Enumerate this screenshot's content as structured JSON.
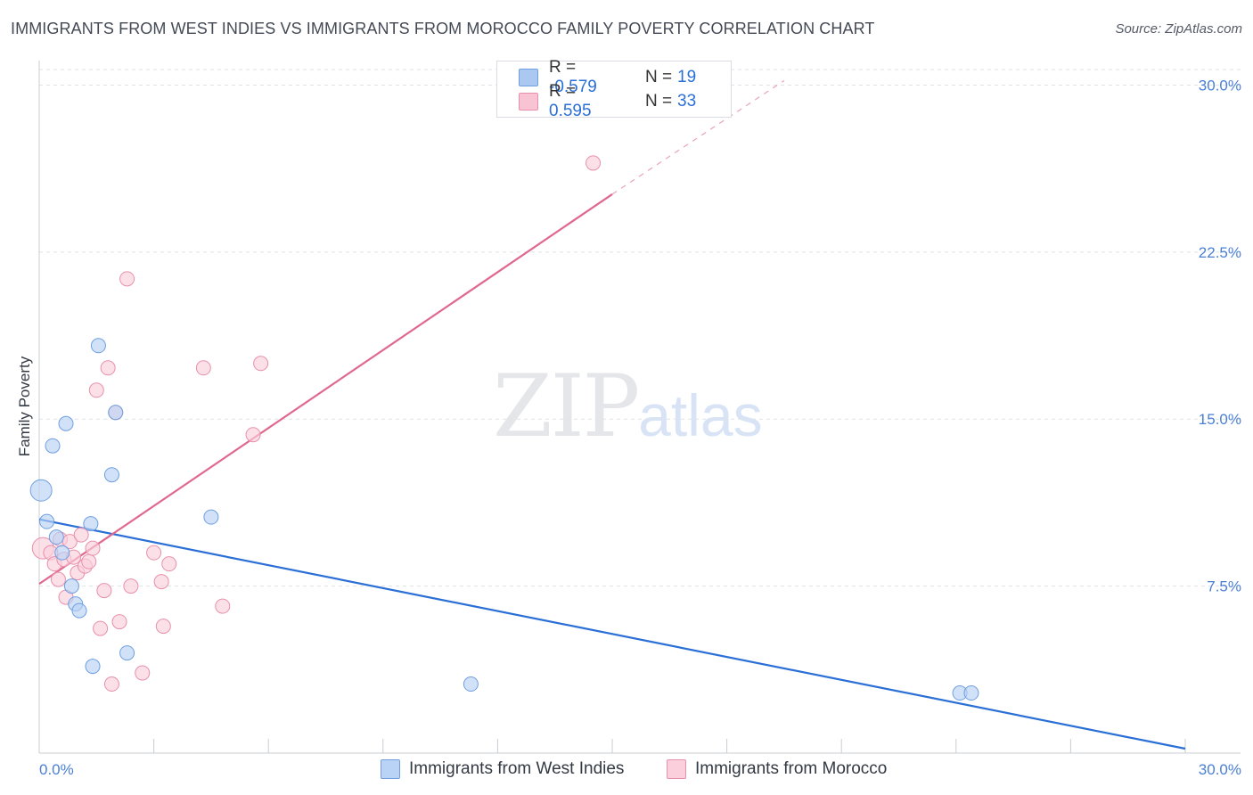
{
  "title": "IMMIGRANTS FROM WEST INDIES VS IMMIGRANTS FROM MOROCCO FAMILY POVERTY CORRELATION CHART",
  "source": "Source: ZipAtlas.com",
  "watermark": {
    "zip": "ZIP",
    "atlas": "atlas"
  },
  "legend_top": {
    "rows": [
      {
        "r_label": "R =",
        "r_value": "-0.579",
        "n_label": "N =",
        "n_value": "19",
        "color": "#aac8f0",
        "border": "#6f9fe0"
      },
      {
        "r_label": "R =",
        "r_value": "0.595",
        "n_label": "N =",
        "n_value": "33",
        "color": "#f8c4d4",
        "border": "#e890ab"
      }
    ]
  },
  "legend_bottom": [
    {
      "label": "Immigrants from West Indies",
      "color": "#b8d3f5",
      "border": "#6f9fe0"
    },
    {
      "label": "Immigrants from Morocco",
      "color": "#fbd0dc",
      "border": "#e890ab"
    }
  ],
  "chart_data": {
    "type": "scatter",
    "title": "IMMIGRANTS FROM WEST INDIES VS IMMIGRANTS FROM MOROCCO FAMILY POVERTY CORRELATION CHART",
    "xlabel": "",
    "ylabel": "Family Poverty",
    "xlim": [
      0,
      30
    ],
    "ylim": [
      0,
      30.7
    ],
    "x_tick_labels": [
      {
        "value": 0,
        "label": "0.0%"
      },
      {
        "value": 30,
        "label": "30.0%"
      }
    ],
    "y_ticks": [
      {
        "value": 7.5,
        "label": "7.5%"
      },
      {
        "value": 15,
        "label": "15.0%"
      },
      {
        "value": 22.5,
        "label": "22.5%"
      },
      {
        "value": 30,
        "label": "30.0%"
      }
    ],
    "series": [
      {
        "name": "Immigrants from West Indies",
        "color": "#6f9fe0",
        "fill": "#b8d3f5",
        "line_color": "#2a6fd6",
        "trend": {
          "x": [
            0,
            30
          ],
          "y": [
            10.5,
            0.2
          ]
        },
        "points": [
          {
            "x": 0.05,
            "y": 11.8,
            "big": true
          },
          {
            "x": 0.2,
            "y": 10.4
          },
          {
            "x": 0.35,
            "y": 13.8
          },
          {
            "x": 0.45,
            "y": 9.7
          },
          {
            "x": 0.6,
            "y": 9.0
          },
          {
            "x": 0.7,
            "y": 14.8
          },
          {
            "x": 0.85,
            "y": 7.5
          },
          {
            "x": 0.95,
            "y": 6.7
          },
          {
            "x": 1.05,
            "y": 6.4
          },
          {
            "x": 1.35,
            "y": 10.3
          },
          {
            "x": 1.4,
            "y": 3.9
          },
          {
            "x": 1.55,
            "y": 18.3
          },
          {
            "x": 1.9,
            "y": 12.5
          },
          {
            "x": 2.0,
            "y": 15.3
          },
          {
            "x": 2.3,
            "y": 4.5
          },
          {
            "x": 4.5,
            "y": 10.6
          },
          {
            "x": 11.3,
            "y": 3.1
          },
          {
            "x": 24.1,
            "y": 2.7
          },
          {
            "x": 24.4,
            "y": 2.7
          }
        ]
      },
      {
        "name": "Immigrants from Morocco",
        "color": "#e890ab",
        "fill": "#fbd0dc",
        "line_color": "#e0688f",
        "trend": {
          "x": [
            0,
            15
          ],
          "y": [
            7.6,
            25.1
          ]
        },
        "trend_dashed": {
          "x": [
            15,
            19.5
          ],
          "y": [
            25.1,
            30.2
          ]
        },
        "points": [
          {
            "x": 0.1,
            "y": 9.2,
            "big": true
          },
          {
            "x": 0.3,
            "y": 9.0
          },
          {
            "x": 0.4,
            "y": 8.5
          },
          {
            "x": 0.5,
            "y": 7.8
          },
          {
            "x": 0.55,
            "y": 9.6
          },
          {
            "x": 0.65,
            "y": 8.7
          },
          {
            "x": 0.7,
            "y": 7.0
          },
          {
            "x": 0.8,
            "y": 9.5
          },
          {
            "x": 0.9,
            "y": 8.8
          },
          {
            "x": 1.0,
            "y": 8.1
          },
          {
            "x": 1.1,
            "y": 9.8
          },
          {
            "x": 1.2,
            "y": 8.4
          },
          {
            "x": 1.3,
            "y": 8.6
          },
          {
            "x": 1.4,
            "y": 9.2
          },
          {
            "x": 1.5,
            "y": 16.3
          },
          {
            "x": 1.6,
            "y": 5.6
          },
          {
            "x": 1.7,
            "y": 7.3
          },
          {
            "x": 1.8,
            "y": 17.3
          },
          {
            "x": 1.9,
            "y": 3.1
          },
          {
            "x": 2.0,
            "y": 15.3
          },
          {
            "x": 2.1,
            "y": 5.9
          },
          {
            "x": 2.3,
            "y": 21.3
          },
          {
            "x": 2.4,
            "y": 7.5
          },
          {
            "x": 2.7,
            "y": 3.6
          },
          {
            "x": 3.0,
            "y": 9.0
          },
          {
            "x": 3.2,
            "y": 7.7
          },
          {
            "x": 3.25,
            "y": 5.7
          },
          {
            "x": 3.4,
            "y": 8.5
          },
          {
            "x": 4.3,
            "y": 17.3
          },
          {
            "x": 4.8,
            "y": 6.6
          },
          {
            "x": 5.6,
            "y": 14.3
          },
          {
            "x": 5.8,
            "y": 17.5
          },
          {
            "x": 14.5,
            "y": 26.5
          }
        ]
      }
    ]
  }
}
